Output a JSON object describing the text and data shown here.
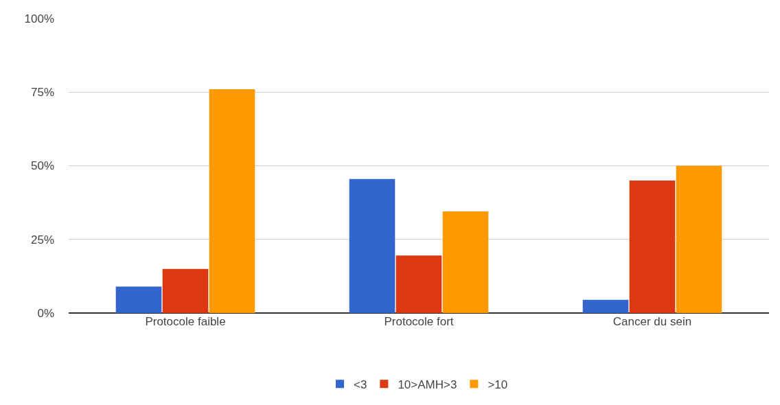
{
  "chart_data": {
    "type": "bar",
    "categories": [
      "Protocole faible",
      "Protocole fort",
      "Cancer du sein"
    ],
    "series": [
      {
        "name": "<3",
        "color": "#3366cc",
        "values": [
          9,
          45.5,
          4.5
        ]
      },
      {
        "name": "10>AMH>3",
        "color": "#dc3912",
        "values": [
          15,
          19.5,
          45
        ]
      },
      {
        "name": ">10",
        "color": "#ff9900",
        "values": [
          76,
          34.5,
          50
        ]
      }
    ],
    "ylim": [
      0,
      100
    ],
    "yticks": [
      {
        "value": 0,
        "label": "0%"
      },
      {
        "value": 25,
        "label": "25%"
      },
      {
        "value": 50,
        "label": "50%"
      },
      {
        "value": 75,
        "label": "75%"
      },
      {
        "value": 100,
        "label": "100%"
      }
    ],
    "grid": "y",
    "legend": "bottom"
  }
}
